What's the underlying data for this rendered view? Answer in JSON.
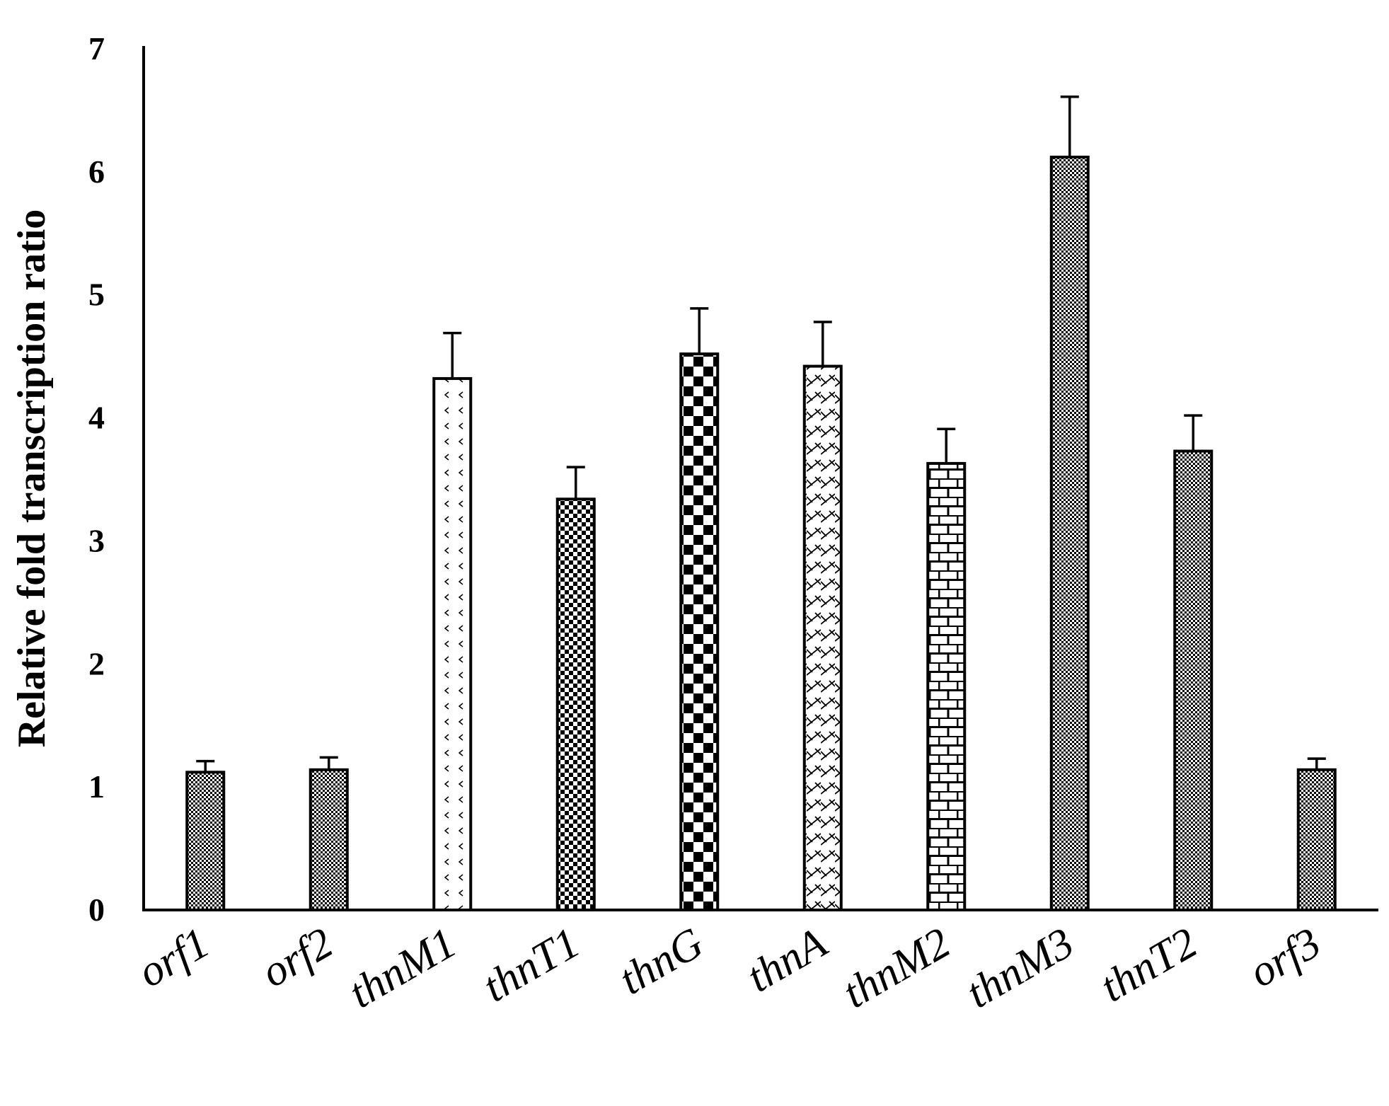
{
  "chart_data": {
    "type": "bar",
    "title": "",
    "xlabel": "",
    "ylabel": "Relative fold transcription ratio",
    "ylim": [
      0,
      7
    ],
    "yticks": [
      "0",
      "1",
      "2",
      "3",
      "4",
      "5",
      "6",
      "7"
    ],
    "grid": false,
    "legend": "none",
    "categories": [
      "orf1",
      "orf2",
      "thnM1",
      "thnT1",
      "thnG",
      "thnA",
      "thnM2",
      "thnM3",
      "thnT2",
      "orf3"
    ],
    "values": [
      1.12,
      1.14,
      4.32,
      3.34,
      4.52,
      4.42,
      3.63,
      6.12,
      3.73,
      1.14
    ],
    "errors": [
      0.09,
      0.1,
      0.37,
      0.26,
      0.37,
      0.36,
      0.28,
      0.49,
      0.29,
      0.09
    ],
    "patterns": [
      "fine-dots",
      "fine-dots",
      "open-marks",
      "checker-small",
      "checker-large",
      "zigzag",
      "brick",
      "fine-dots",
      "fine-dots",
      "fine-dots"
    ],
    "colors": {
      "bar_stroke": "#000000",
      "fill": "#ffffff",
      "pattern": "#000000"
    }
  }
}
